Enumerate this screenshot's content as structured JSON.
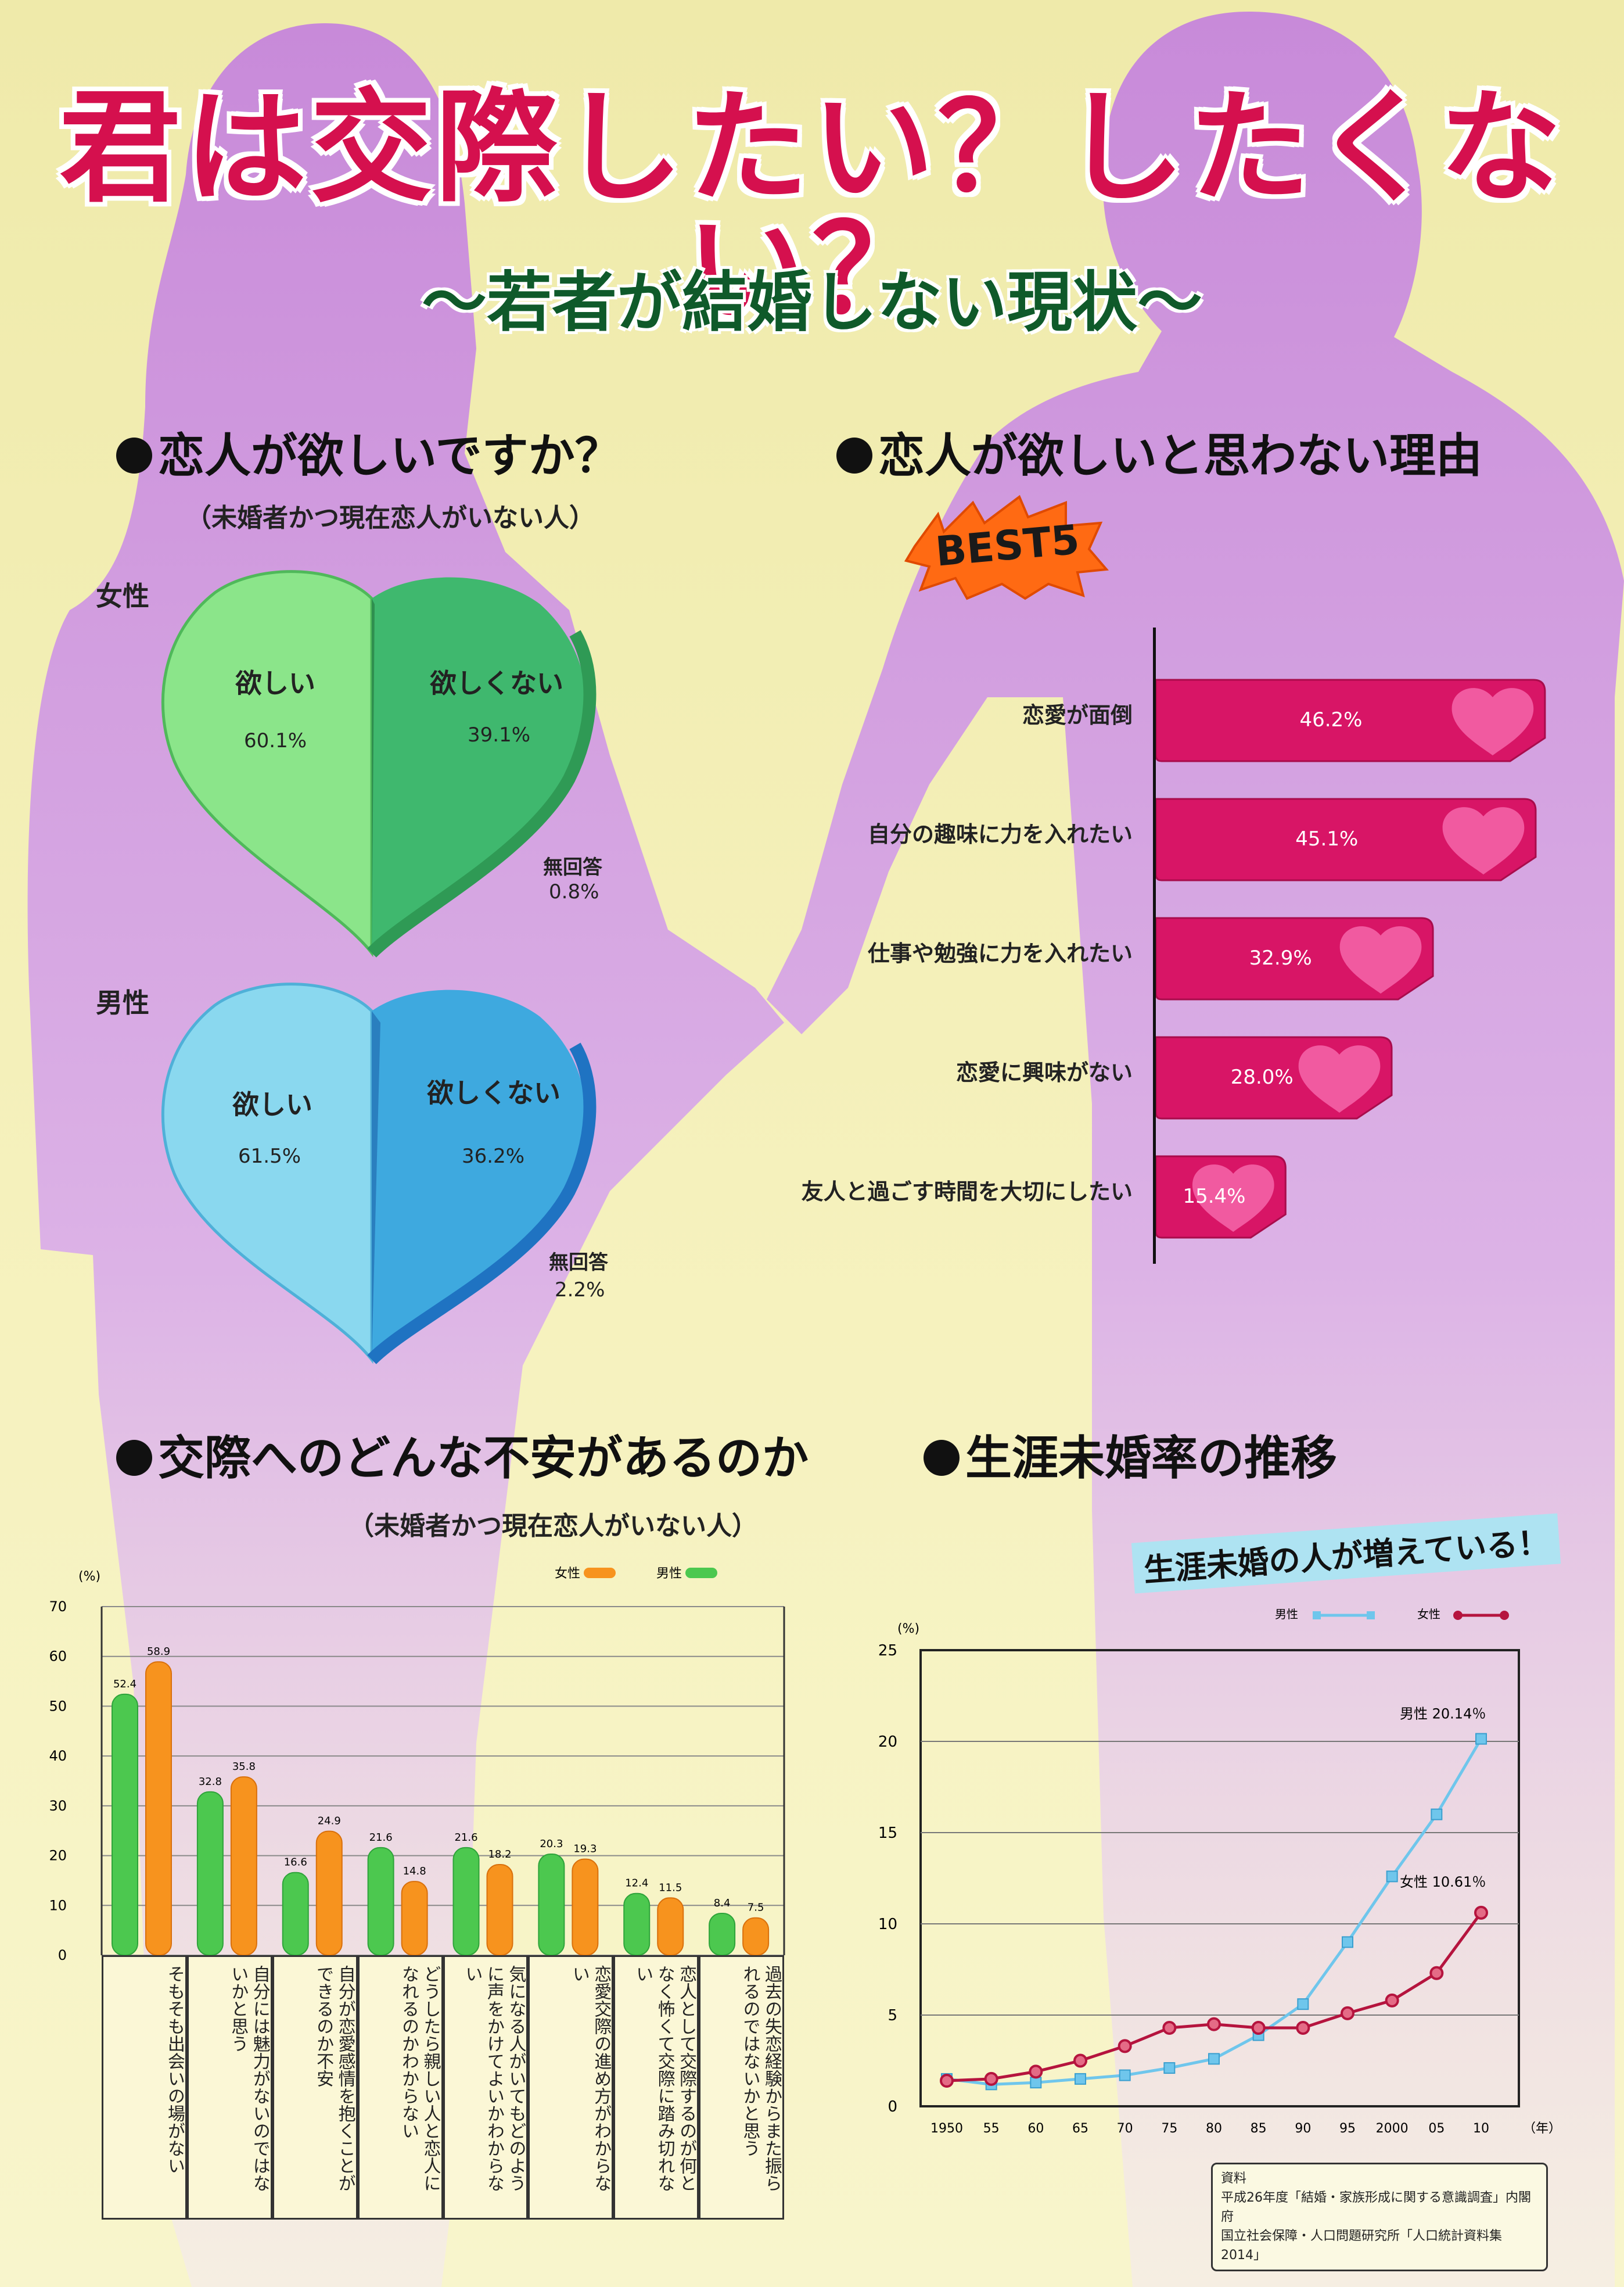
{
  "title": "君は交際したい？したくない？",
  "subtitle": "～若者が結婚しない現状～",
  "colors": {
    "title_red": "#d5104e",
    "silhouette": "#c98de0",
    "female_green": "#5fce6a",
    "female_green_light": "#8be58a",
    "male_blue": "#3ea9df",
    "male_blue_light": "#8ad8ef",
    "reason_bar": "#d81566",
    "heart_pink": "#f15aa0",
    "bar_female_orange": "#f7931e",
    "bar_male_green": "#4cc84f",
    "line_male": "#6fc6ec",
    "line_female": "#b5143e"
  },
  "section_want": {
    "heading": "恋人が欲しいですか？",
    "note": "（未婚者かつ現在恋人がいない人）",
    "female": {
      "label": "女性",
      "want": "欲しい",
      "want_pct": "60.1%",
      "notwant": "欲しくない",
      "notwant_pct": "39.1%",
      "noanswer": "無回答",
      "noanswer_pct": "0.8%"
    },
    "male": {
      "label": "男性",
      "want": "欲しい",
      "want_pct": "61.5%",
      "notwant": "欲しくない",
      "notwant_pct": "36.2%",
      "noanswer": "無回答",
      "noanswer_pct": "2.2%"
    }
  },
  "section_reason": {
    "heading": "恋人が欲しいと思わない理由",
    "badge": "BEST5"
  },
  "section_anxiety": {
    "heading": "交際へのどんな不安があるのか",
    "note": "（未婚者かつ現在恋人がいない人）",
    "legend_female": "女性",
    "legend_male": "男性",
    "yunit": "(%)"
  },
  "section_trend": {
    "heading": "生涯未婚率の推移",
    "banner": "生涯未婚の人が増えている！",
    "legend_male": "男性",
    "legend_female": "女性",
    "annotation_male": "男性 20.14％",
    "annotation_female": "女性 10.61％",
    "yunit": "(%)",
    "xunit": "（年）",
    "source_title": "資料",
    "source_line1": "平成26年度「結婚・家族形成に関する意識調査」内閣府",
    "source_line2": "国立社会保障・人口問題研究所「人口統計資料集2014」"
  },
  "chart_data": [
    {
      "type": "pie",
      "title": "女性",
      "categories": [
        "欲しい",
        "欲しくない",
        "無回答"
      ],
      "values": [
        60.1,
        39.1,
        0.8
      ]
    },
    {
      "type": "pie",
      "title": "男性",
      "categories": [
        "欲しい",
        "欲しくない",
        "無回答"
      ],
      "values": [
        61.5,
        36.2,
        2.2
      ]
    },
    {
      "type": "bar",
      "title": "恋人が欲しいと思わない理由",
      "categories": [
        "恋愛が面倒",
        "自分の趣味に力を入れたい",
        "仕事や勉強に力を入れたい",
        "恋愛に興味がない",
        "友人と過ごす時間を大切にしたい"
      ],
      "values": [
        46.2,
        45.1,
        32.9,
        28.0,
        15.4
      ],
      "labels": [
        "46.2%",
        "45.1%",
        "32.9%",
        "28.0%",
        "15.4%"
      ]
    },
    {
      "type": "bar",
      "title": "交際へのどんな不安があるのか",
      "ylabel": "(%)",
      "ylim": [
        0,
        70
      ],
      "yticks": [
        0,
        10,
        20,
        30,
        40,
        50,
        60,
        70
      ],
      "grid": true,
      "legend": "top-right",
      "categories": [
        "そもそも出会いの場がない",
        "自分には魅力がないのではないかと思う",
        "自分が恋愛感情を抱くことができるのか不安",
        "どうしたら親しい人と恋人になれるのかわからない",
        "気になる人がいてもどのように声をかけてよいかわからない",
        "恋愛交際の進め方がわからない",
        "恋人として交際するのが何となく怖くて交際に踏み切れない",
        "過去の失恋経験からまた振られるのではないかと思う"
      ],
      "series": [
        {
          "name": "男性",
          "values": [
            52.4,
            32.8,
            16.6,
            21.6,
            21.6,
            20.3,
            12.4,
            8.4
          ]
        },
        {
          "name": "女性",
          "values": [
            58.9,
            35.8,
            24.9,
            14.8,
            18.2,
            19.3,
            11.5,
            7.5
          ]
        }
      ]
    },
    {
      "type": "line",
      "title": "生涯未婚率の推移",
      "ylabel": "(%)",
      "xlabel": "（年）",
      "ylim": [
        0,
        25
      ],
      "yticks": [
        0,
        5,
        10,
        15,
        20,
        25
      ],
      "grid": true,
      "legend": "top-right",
      "x": [
        1950,
        1955,
        1960,
        1965,
        1970,
        1975,
        1980,
        1985,
        1990,
        1995,
        2000,
        2005,
        2010
      ],
      "xtick_labels": [
        "1950",
        "55",
        "60",
        "65",
        "70",
        "75",
        "80",
        "85",
        "90",
        "95",
        "2000",
        "05",
        "10"
      ],
      "series": [
        {
          "name": "男性",
          "values": [
            1.5,
            1.2,
            1.3,
            1.5,
            1.7,
            2.1,
            2.6,
            3.9,
            5.6,
            9.0,
            12.6,
            16.0,
            20.14
          ]
        },
        {
          "name": "女性",
          "values": [
            1.4,
            1.5,
            1.9,
            2.5,
            3.3,
            4.3,
            4.5,
            4.3,
            4.3,
            5.1,
            5.8,
            7.3,
            10.61
          ]
        }
      ]
    }
  ]
}
